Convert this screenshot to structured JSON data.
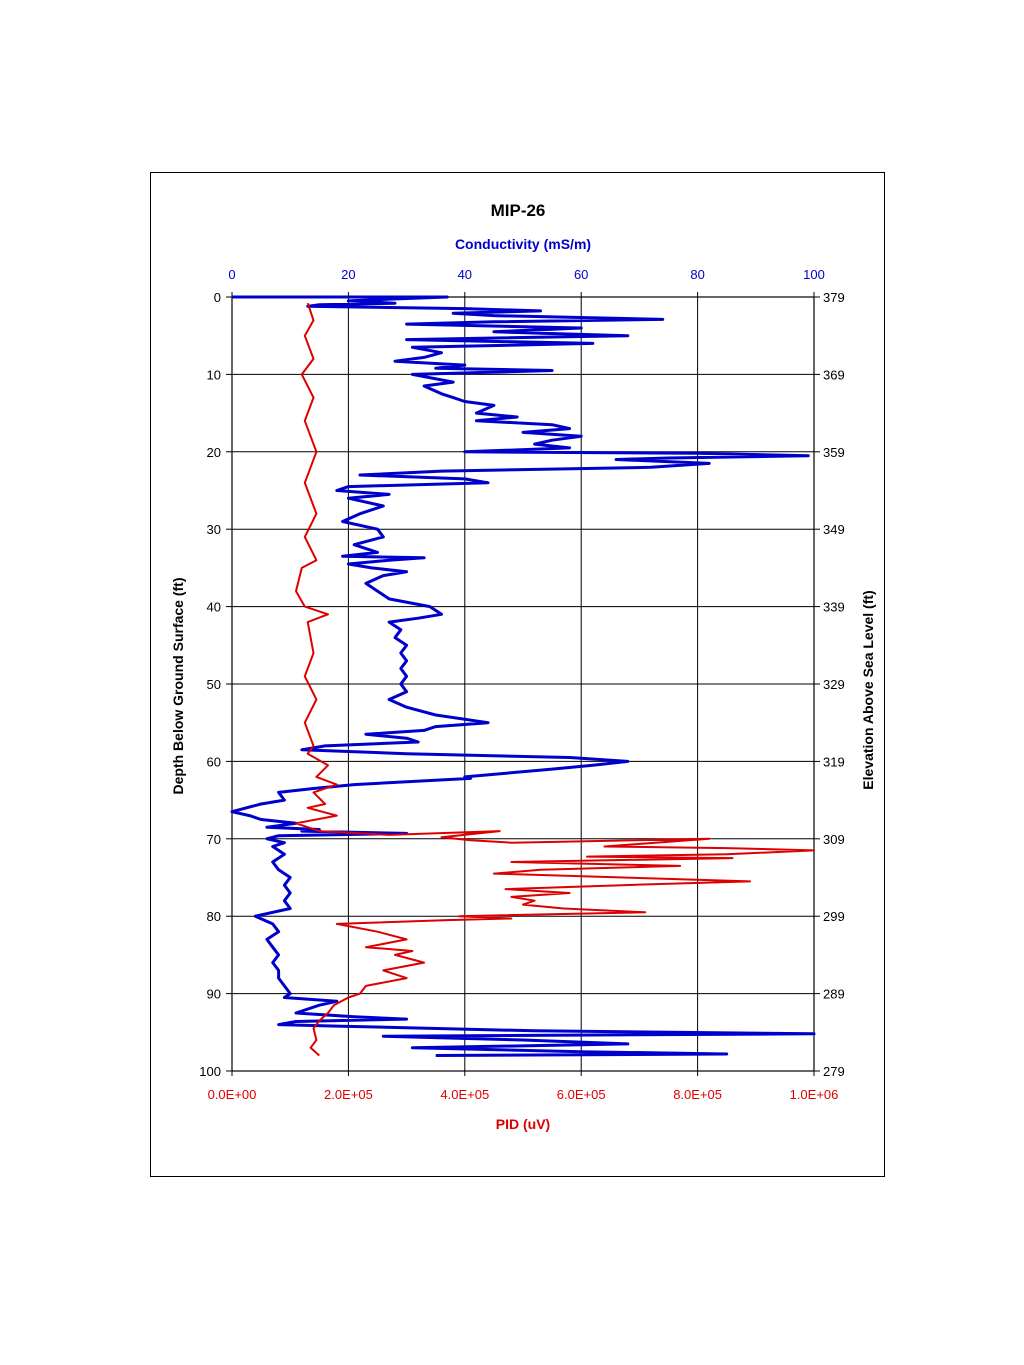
{
  "chart_data": {
    "type": "line",
    "title": "MIP-26",
    "top_axis": {
      "label": "Conductivity (mS/m)",
      "range": [
        0,
        100
      ],
      "ticks": [
        "0",
        "20",
        "40",
        "60",
        "80",
        "100"
      ],
      "color": "#0000cc"
    },
    "bottom_axis": {
      "label": "PID (uV)",
      "range": [
        0,
        1000000
      ],
      "ticks": [
        "0.0E+00",
        "2.0E+05",
        "4.0E+05",
        "6.0E+05",
        "8.0E+05",
        "1.0E+06"
      ],
      "color": "#dd0000"
    },
    "left_axis": {
      "label": "Depth Below Ground Surface (ft)",
      "range": [
        0,
        100
      ],
      "inverted": true,
      "ticks": [
        "0",
        "10",
        "20",
        "30",
        "40",
        "50",
        "60",
        "70",
        "80",
        "90",
        "100"
      ]
    },
    "right_axis": {
      "label": "Elevation Above Sea Level (ft)",
      "ticks": [
        "379",
        "369",
        "359",
        "349",
        "339",
        "329",
        "319",
        "309",
        "299",
        "289",
        "279"
      ]
    },
    "grid": true,
    "series": [
      {
        "axis": "top",
        "color": "#0000cc",
        "points": [
          [
            0,
            0
          ],
          [
            37,
            0
          ],
          [
            30,
            0.2
          ],
          [
            20,
            0.5
          ],
          [
            28,
            0.8
          ],
          [
            15,
            1.0
          ],
          [
            13,
            1.2
          ],
          [
            40,
            1.5
          ],
          [
            53,
            1.8
          ],
          [
            38,
            2.1
          ],
          [
            45,
            2.4
          ],
          [
            74,
            2.9
          ],
          [
            45,
            3.2
          ],
          [
            30,
            3.5
          ],
          [
            60,
            4.0
          ],
          [
            45,
            4.5
          ],
          [
            68,
            5.0
          ],
          [
            30,
            5.5
          ],
          [
            62,
            6.0
          ],
          [
            31,
            6.5
          ],
          [
            36,
            7.2
          ],
          [
            33,
            7.8
          ],
          [
            28,
            8.3
          ],
          [
            40,
            8.8
          ],
          [
            35,
            9.2
          ],
          [
            55,
            9.5
          ],
          [
            31,
            10.0
          ],
          [
            38,
            11.0
          ],
          [
            33,
            11.5
          ],
          [
            36,
            12.5
          ],
          [
            38,
            13.0
          ],
          [
            40,
            13.5
          ],
          [
            45,
            14.0
          ],
          [
            42,
            15.0
          ],
          [
            49,
            15.5
          ],
          [
            42,
            16.0
          ],
          [
            55,
            16.5
          ],
          [
            58,
            17.0
          ],
          [
            50,
            17.5
          ],
          [
            60,
            18.0
          ],
          [
            55,
            18.5
          ],
          [
            52,
            19.0
          ],
          [
            58,
            19.5
          ],
          [
            40,
            20.0
          ],
          [
            80,
            20.2
          ],
          [
            99,
            20.5
          ],
          [
            75,
            20.8
          ],
          [
            66,
            21.0
          ],
          [
            82,
            21.5
          ],
          [
            72,
            22.0
          ],
          [
            36,
            22.5
          ],
          [
            22,
            23.0
          ],
          [
            40,
            23.5
          ],
          [
            44,
            24.0
          ],
          [
            20,
            24.5
          ],
          [
            18,
            25.0
          ],
          [
            27,
            25.5
          ],
          [
            20,
            26.0
          ],
          [
            26,
            27.0
          ],
          [
            22,
            28.0
          ],
          [
            19,
            29.0
          ],
          [
            25,
            30.0
          ],
          [
            26,
            31.0
          ],
          [
            21,
            32.0
          ],
          [
            25,
            33.0
          ],
          [
            19,
            33.5
          ],
          [
            33,
            33.7
          ],
          [
            27,
            34.0
          ],
          [
            20,
            34.5
          ],
          [
            24,
            35.0
          ],
          [
            30,
            35.5
          ],
          [
            26,
            36.0
          ],
          [
            23,
            37.0
          ],
          [
            25,
            38.0
          ],
          [
            27,
            39.0
          ],
          [
            34,
            40.0
          ],
          [
            36,
            41.0
          ],
          [
            32,
            41.5
          ],
          [
            27,
            42.0
          ],
          [
            29,
            43.0
          ],
          [
            28,
            44.0
          ],
          [
            30,
            45.0
          ],
          [
            29,
            46.0
          ],
          [
            30,
            47.0
          ],
          [
            29,
            48.0
          ],
          [
            30,
            49.0
          ],
          [
            29,
            50.0
          ],
          [
            30,
            51.0
          ],
          [
            27,
            52.0
          ],
          [
            30,
            53.0
          ],
          [
            35,
            54.0
          ],
          [
            44,
            55.0
          ],
          [
            35,
            55.5
          ],
          [
            33,
            56.0
          ],
          [
            23,
            56.5
          ],
          [
            30,
            57.0
          ],
          [
            32,
            57.5
          ],
          [
            16,
            58.0
          ],
          [
            12,
            58.5
          ],
          [
            30,
            59.0
          ],
          [
            58,
            59.5
          ],
          [
            68,
            60.0
          ],
          [
            62,
            60.5
          ],
          [
            55,
            61.0
          ],
          [
            40,
            62.0
          ],
          [
            41,
            62.2
          ],
          [
            21,
            63.0
          ],
          [
            14,
            63.5
          ],
          [
            8,
            64.0
          ],
          [
            9,
            65.0
          ],
          [
            5,
            65.5
          ],
          [
            0,
            66.5
          ],
          [
            3,
            67.0
          ],
          [
            5,
            67.5
          ],
          [
            11,
            68.0
          ],
          [
            6,
            68.5
          ],
          [
            15,
            68.8
          ],
          [
            12,
            69.0
          ],
          [
            30,
            69.3
          ],
          [
            8,
            69.6
          ],
          [
            6,
            70.0
          ],
          [
            9,
            70.5
          ],
          [
            7,
            71.0
          ],
          [
            8,
            71.5
          ],
          [
            9,
            72.0
          ],
          [
            7,
            73.0
          ],
          [
            8,
            74.0
          ],
          [
            10,
            75.0
          ],
          [
            9,
            76.0
          ],
          [
            10,
            77.0
          ],
          [
            9,
            78.0
          ],
          [
            10,
            79.0
          ],
          [
            4,
            80.0
          ],
          [
            7,
            81.0
          ],
          [
            8,
            82.0
          ],
          [
            6,
            83.0
          ],
          [
            7,
            84.0
          ],
          [
            8,
            85.0
          ],
          [
            7,
            86.0
          ],
          [
            8,
            87.0
          ],
          [
            8,
            88.0
          ],
          [
            9,
            89.0
          ],
          [
            10,
            90.0
          ],
          [
            9,
            90.5
          ],
          [
            18,
            91.0
          ],
          [
            15,
            91.5
          ],
          [
            11,
            92.5
          ],
          [
            21,
            93.0
          ],
          [
            30,
            93.3
          ],
          [
            11,
            93.6
          ],
          [
            8,
            94.0
          ],
          [
            18,
            94.2
          ],
          [
            52,
            94.8
          ],
          [
            100,
            95.2
          ],
          [
            26,
            95.5
          ],
          [
            50,
            96.0
          ],
          [
            68,
            96.5
          ],
          [
            31,
            97.0
          ],
          [
            60,
            97.5
          ],
          [
            85,
            97.8
          ],
          [
            35,
            98.0
          ]
        ]
      },
      {
        "axis": "bottom",
        "color": "#dd0000",
        "points": [
          [
            130000,
            0.8
          ],
          [
            140000,
            3.0
          ],
          [
            125000,
            5.0
          ],
          [
            140000,
            8.0
          ],
          [
            120000,
            10.0
          ],
          [
            140000,
            13.0
          ],
          [
            125000,
            16.0
          ],
          [
            145000,
            20.0
          ],
          [
            125000,
            24.0
          ],
          [
            145000,
            28.0
          ],
          [
            125000,
            31.0
          ],
          [
            145000,
            34.0
          ],
          [
            120000,
            35.0
          ],
          [
            110000,
            38.0
          ],
          [
            125000,
            40.0
          ],
          [
            165000,
            41.0
          ],
          [
            130000,
            42.0
          ],
          [
            140000,
            46.0
          ],
          [
            125000,
            49.0
          ],
          [
            145000,
            52.0
          ],
          [
            125000,
            55.0
          ],
          [
            140000,
            58.0
          ],
          [
            130000,
            59.0
          ],
          [
            165000,
            60.5
          ],
          [
            145000,
            62.0
          ],
          [
            180000,
            63.0
          ],
          [
            140000,
            64.0
          ],
          [
            160000,
            65.5
          ],
          [
            130000,
            66.0
          ],
          [
            180000,
            67.0
          ],
          [
            110000,
            68.0
          ],
          [
            150000,
            69.0
          ],
          [
            270000,
            69.5
          ],
          [
            460000,
            69.0
          ],
          [
            360000,
            69.8
          ],
          [
            410000,
            70.2
          ],
          [
            480000,
            70.5
          ],
          [
            820000,
            70.0
          ],
          [
            640000,
            71.0
          ],
          [
            850000,
            71.2
          ],
          [
            1000000,
            71.5
          ],
          [
            850000,
            72.0
          ],
          [
            610000,
            72.3
          ],
          [
            860000,
            72.5
          ],
          [
            480000,
            73.0
          ],
          [
            770000,
            73.5
          ],
          [
            530000,
            74.0
          ],
          [
            450000,
            74.5
          ],
          [
            890000,
            75.5
          ],
          [
            670000,
            76.0
          ],
          [
            470000,
            76.5
          ],
          [
            580000,
            77.0
          ],
          [
            480000,
            77.5
          ],
          [
            520000,
            78.0
          ],
          [
            500000,
            78.5
          ],
          [
            570000,
            79.0
          ],
          [
            710000,
            79.5
          ],
          [
            390000,
            80.0
          ],
          [
            480000,
            80.3
          ],
          [
            370000,
            80.5
          ],
          [
            180000,
            81.0
          ],
          [
            250000,
            82.0
          ],
          [
            300000,
            83.0
          ],
          [
            230000,
            84.0
          ],
          [
            310000,
            84.5
          ],
          [
            280000,
            85.0
          ],
          [
            330000,
            86.0
          ],
          [
            260000,
            87.0
          ],
          [
            300000,
            88.0
          ],
          [
            230000,
            89.0
          ],
          [
            220000,
            90.0
          ],
          [
            200000,
            90.5
          ],
          [
            175000,
            91.5
          ],
          [
            165000,
            92.5
          ],
          [
            150000,
            93.5
          ],
          [
            140000,
            94.5
          ],
          [
            145000,
            96.0
          ],
          [
            135000,
            97.0
          ],
          [
            150000,
            98.0
          ]
        ]
      }
    ]
  }
}
